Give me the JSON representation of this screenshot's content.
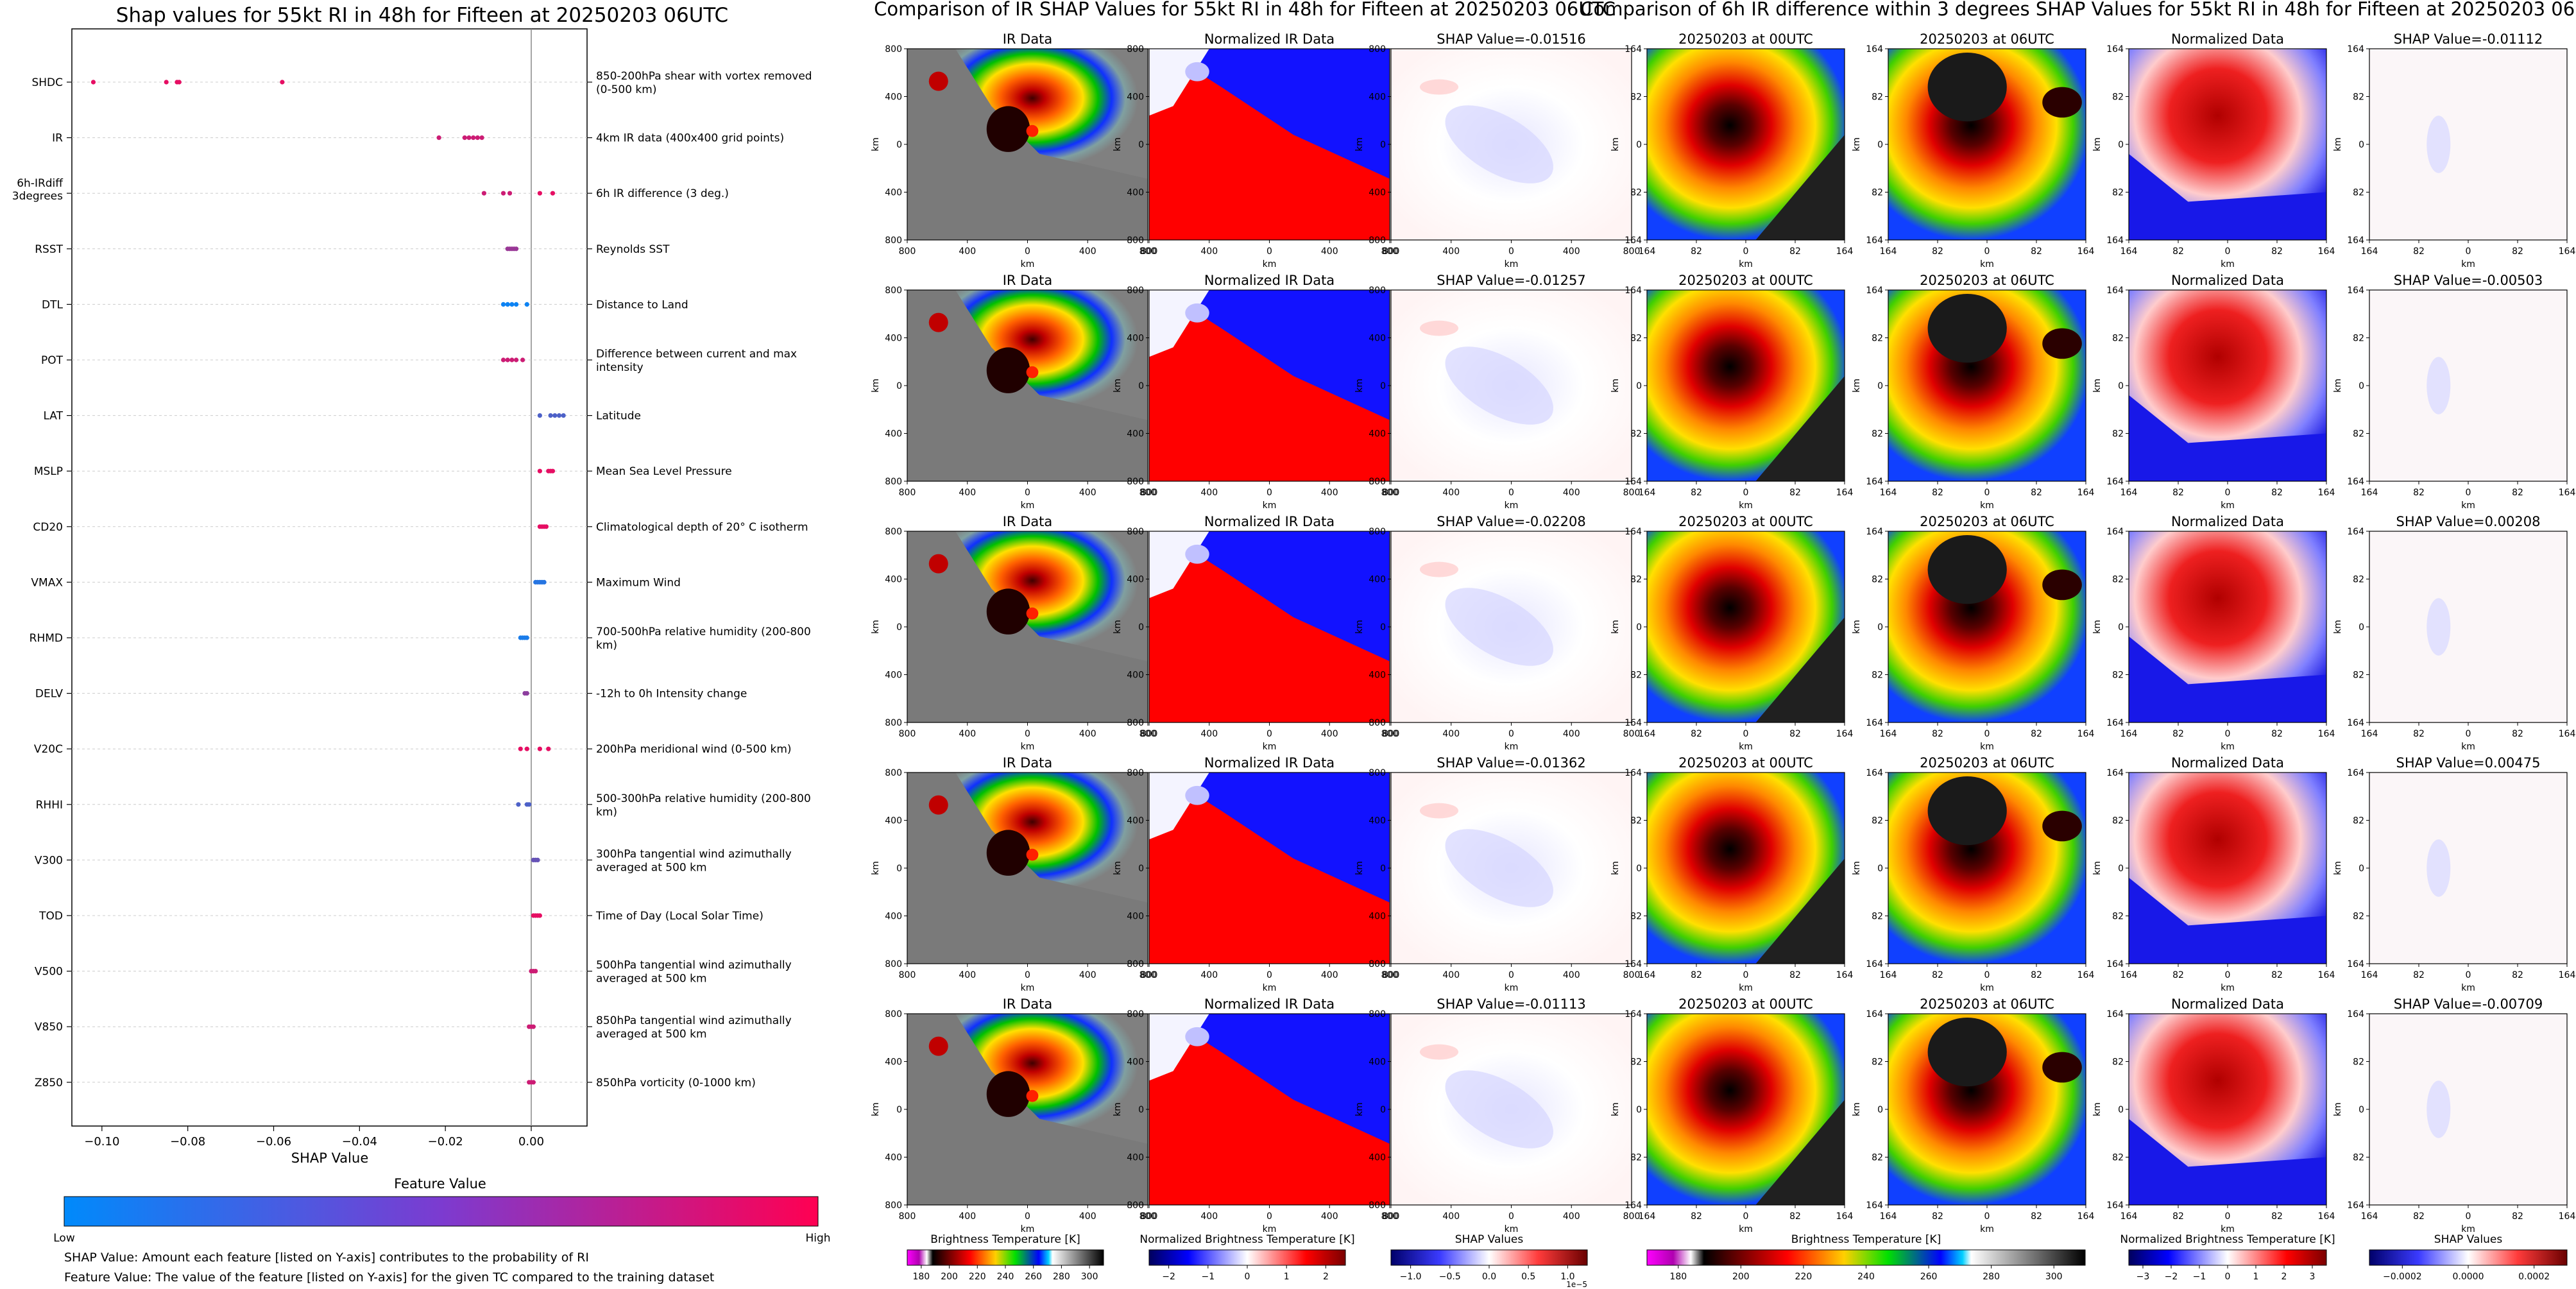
{
  "left": {
    "title": "Shap values for 55kt RI in 48h for Fifteen at 20250203 06UTC",
    "xlabel": "SHAP Value",
    "colorbar": {
      "label": "Feature Value",
      "low": "Low",
      "high": "High",
      "colors": [
        "#008afb",
        "#ff0052"
      ]
    },
    "notes": [
      "SHAP Value: Amount each feature [listed on Y-axis] contributes to the probability of RI",
      "Feature Value: The value of the feature [listed on Y-axis] for the given TC compared to the training dataset"
    ]
  },
  "middle": {
    "title": "Comparison of IR SHAP Values for 55kt RI in 48h for Fifteen at 20250203 06UTC",
    "axis_label": "km",
    "col_titles": [
      "IR Data",
      "Normalized IR Data"
    ],
    "shap_titles": [
      "SHAP Value=-0.01516",
      "SHAP Value=-0.01257",
      "SHAP Value=-0.02208",
      "SHAP Value=-0.01362",
      "SHAP Value=-0.01113"
    ],
    "ticks": [
      "800",
      "400",
      "0",
      "400",
      "800"
    ],
    "colorbars": [
      {
        "label": "Brightness Temperature [K]",
        "ticks": [
          "180",
          "200",
          "220",
          "240",
          "260",
          "280",
          "300"
        ]
      },
      {
        "label": "Normalized Brightness Temperature [K]",
        "ticks": [
          "−2",
          "−1",
          "0",
          "1",
          "2"
        ]
      },
      {
        "label": "SHAP Values",
        "ticks": [
          "−1.0",
          "−0.5",
          "0.0",
          "0.5",
          "1.0"
        ],
        "exponent": "1e−5"
      }
    ]
  },
  "right": {
    "title": "Comparison of 6h IR difference within 3 degrees SHAP Values for 55kt RI in 48h for Fifteen at 20250203 06UTC",
    "axis_label": "km",
    "col_titles": [
      "20250203 at 00UTC",
      "20250203 at 06UTC",
      "Normalized Data"
    ],
    "shap_titles": [
      "SHAP Value=-0.01112",
      "SHAP Value=-0.00503",
      "SHAP Value=0.00208",
      "SHAP Value=0.00475",
      "SHAP Value=-0.00709"
    ],
    "ticks": [
      "164",
      "82",
      "0",
      "82",
      "164"
    ],
    "colorbars": [
      {
        "label": "Brightness Temperature [K]",
        "ticks": [
          "180",
          "200",
          "220",
          "240",
          "260",
          "280",
          "300"
        ]
      },
      {
        "label": "Normalized Brightness Temperature [K]",
        "ticks": [
          "−3",
          "−2",
          "−1",
          "0",
          "1",
          "2",
          "3"
        ]
      },
      {
        "label": "SHAP Values",
        "ticks": [
          "−0.0002",
          "0.0000",
          "0.0002"
        ]
      }
    ]
  },
  "chart_data": [
    {
      "type": "scatter",
      "title": "Shap values for 55kt RI in 48h for Fifteen at 20250203 06UTC",
      "xlabel": "SHAP Value",
      "xlim": [
        -0.107,
        0.013
      ],
      "xticks": [
        "−0.10",
        "−0.08",
        "−0.06",
        "−0.04",
        "−0.02",
        "0.00"
      ],
      "grid": "horizontal dotted",
      "features": [
        {
          "name": "SHDC",
          "desc": "850-200hPa shear with vortex removed (0-500 km)",
          "values": [
            -0.102,
            -0.085,
            -0.0825,
            -0.082,
            -0.058
          ],
          "fv": [
            0.9,
            0.9,
            0.9,
            0.9,
            0.9
          ]
        },
        {
          "name": "IR",
          "desc": "4km IR data (400x400 grid points)",
          "values": [
            -0.0215,
            -0.0155,
            -0.0145,
            -0.0135,
            -0.0125,
            -0.0115
          ],
          "fv": [
            0.8,
            0.8,
            0.8,
            0.8,
            0.8,
            0.8
          ]
        },
        {
          "name": "6h-IRdiff 3degrees",
          "desc": "6h IR difference (3 deg.)",
          "values": [
            -0.011,
            -0.0065,
            -0.005,
            0.002,
            0.005
          ],
          "fv": [
            0.8,
            0.8,
            0.8,
            0.9,
            0.9
          ]
        },
        {
          "name": "RSST",
          "desc": "Reynolds SST",
          "values": [
            -0.0055,
            -0.005,
            -0.0045,
            -0.004,
            -0.0035
          ],
          "fv": [
            0.6,
            0.6,
            0.6,
            0.6,
            0.6
          ]
        },
        {
          "name": "DTL",
          "desc": "Distance to Land",
          "values": [
            -0.0065,
            -0.0055,
            -0.0045,
            -0.0035,
            -0.001
          ],
          "fv": [
            0.05,
            0.05,
            0.05,
            0.05,
            0.05
          ]
        },
        {
          "name": "POT",
          "desc": "Difference between current and max intensity",
          "values": [
            -0.0065,
            -0.0055,
            -0.0045,
            -0.0035,
            -0.002
          ],
          "fv": [
            0.8,
            0.8,
            0.8,
            0.8,
            0.8
          ]
        },
        {
          "name": "LAT",
          "desc": "Latitude",
          "values": [
            0.002,
            0.0045,
            0.0055,
            0.0065,
            0.0075
          ],
          "fv": [
            0.3,
            0.3,
            0.3,
            0.3,
            0.3
          ]
        },
        {
          "name": "MSLP",
          "desc": "Mean Sea Level Pressure",
          "values": [
            0.002,
            0.004,
            0.0045,
            0.005
          ],
          "fv": [
            0.9,
            0.9,
            0.9,
            0.9
          ]
        },
        {
          "name": "CD20",
          "desc": "Climatological depth of 20° C isotherm",
          "values": [
            0.002,
            0.0025,
            0.003,
            0.0035
          ],
          "fv": [
            0.9,
            0.9,
            0.9,
            0.9
          ]
        },
        {
          "name": "VMAX",
          "desc": "Maximum Wind",
          "values": [
            0.001,
            0.0015,
            0.002,
            0.0025,
            0.003
          ],
          "fv": [
            0.15,
            0.15,
            0.15,
            0.15,
            0.15
          ]
        },
        {
          "name": "RHMD",
          "desc": "700-500hPa relative humidity (200-800 km)",
          "values": [
            -0.0025,
            -0.002,
            -0.0015,
            -0.001
          ],
          "fv": [
            0.1,
            0.1,
            0.1,
            0.1
          ]
        },
        {
          "name": "DELV",
          "desc": "-12h to 0h Intensity change",
          "values": [
            -0.0015,
            -0.001
          ],
          "fv": [
            0.55,
            0.55
          ]
        },
        {
          "name": "V20C",
          "desc": "200hPa meridional wind (0-500 km)",
          "values": [
            -0.0025,
            -0.001,
            0.002,
            0.004
          ],
          "fv": [
            0.9,
            0.9,
            0.9,
            0.9
          ]
        },
        {
          "name": "RHHI",
          "desc": "500-300hPa relative humidity (200-800 km)",
          "values": [
            -0.003,
            -0.001,
            -0.0005
          ],
          "fv": [
            0.3,
            0.3,
            0.3
          ]
        },
        {
          "name": "V300",
          "desc": "300hPa tangential wind azimuthally averaged at 500 km",
          "values": [
            0.0005,
            0.001,
            0.0015
          ],
          "fv": [
            0.4,
            0.4,
            0.4
          ]
        },
        {
          "name": "TOD",
          "desc": "Time of Day (Local Solar Time)",
          "values": [
            0.0005,
            0.001,
            0.0015,
            0.002
          ],
          "fv": [
            0.9,
            0.9,
            0.9,
            0.9
          ]
        },
        {
          "name": "V500",
          "desc": "500hPa tangential wind azimuthally averaged at 500 km",
          "values": [
            0.0,
            0.0005,
            0.001
          ],
          "fv": [
            0.8,
            0.8,
            0.8
          ]
        },
        {
          "name": "V850",
          "desc": "850hPa tangential wind azimuthally averaged at 500 km",
          "values": [
            -0.0005,
            0.0,
            0.0005
          ],
          "fv": [
            0.8,
            0.8,
            0.8
          ]
        },
        {
          "name": "Z850",
          "desc": "850hPa vorticity (0-1000 km)",
          "values": [
            -0.0005,
            0.0,
            0.0005
          ],
          "fv": [
            0.8,
            0.8,
            0.8
          ]
        }
      ]
    },
    {
      "type": "heatmap",
      "title": "Comparison of IR SHAP Values for 55kt RI in 48h for Fifteen at 20250203 06UTC",
      "rows": 5,
      "columns": [
        "IR Data",
        "Normalized IR Data",
        "SHAP"
      ],
      "shap_values": [
        -0.01516,
        -0.01257,
        -0.02208,
        -0.01362,
        -0.01113
      ],
      "xlim": [
        -800,
        800
      ],
      "ylim": [
        -800,
        800
      ]
    },
    {
      "type": "heatmap",
      "title": "Comparison of 6h IR difference within 3 degrees SHAP Values for 55kt RI in 48h for Fifteen at 20250203 06UTC",
      "rows": 5,
      "columns": [
        "20250203 at 00UTC",
        "20250203 at 06UTC",
        "Normalized Data",
        "SHAP"
      ],
      "shap_values": [
        -0.01112,
        -0.00503,
        0.00208,
        0.00475,
        -0.00709
      ],
      "xlim": [
        -164,
        164
      ],
      "ylim": [
        -164,
        164
      ]
    }
  ]
}
